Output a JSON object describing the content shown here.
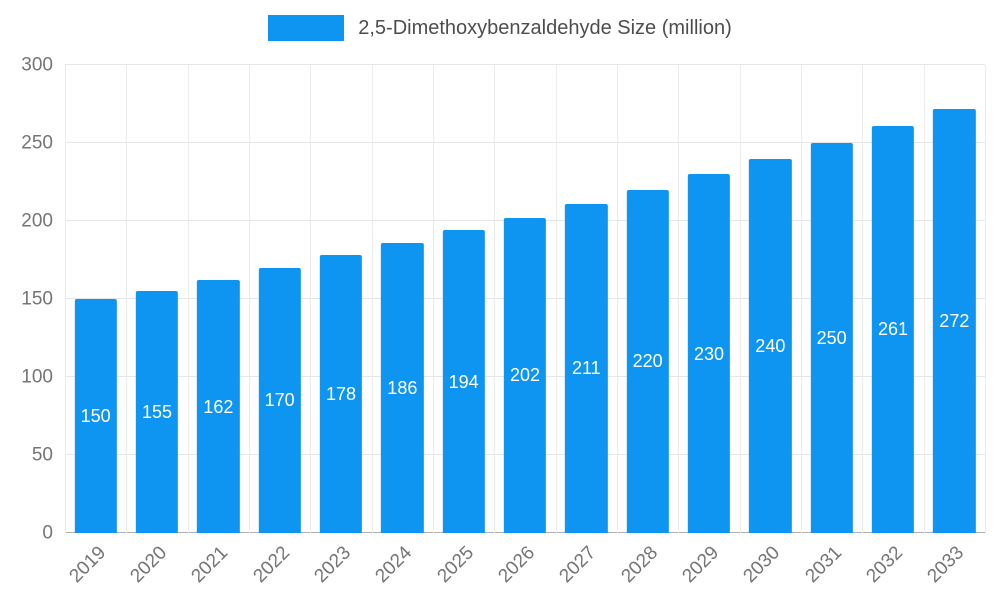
{
  "legend": {
    "label": "2,5-Dimethoxybenzaldehyde Size (million)"
  },
  "chart_data": {
    "type": "bar",
    "title": "2,5-Dimethoxybenzaldehyde Size (million)",
    "categories": [
      "2019",
      "2020",
      "2021",
      "2022",
      "2023",
      "2024",
      "2025",
      "2026",
      "2027",
      "2028",
      "2029",
      "2030",
      "2031",
      "2032",
      "2033"
    ],
    "values": [
      150,
      155,
      162,
      170,
      178,
      186,
      194,
      202,
      211,
      220,
      230,
      240,
      250,
      261,
      272
    ],
    "xlabel": "",
    "ylabel": "",
    "ylim": [
      0,
      300
    ],
    "ytick_step": 50,
    "yticks": [
      0,
      50,
      100,
      150,
      200,
      250,
      300
    ],
    "grid": true,
    "legend_position": "top",
    "bar_color": "#0e94f1",
    "value_label_color": "#ffffff",
    "tick_label_color": "#757575",
    "grid_color": "#e6e6e6"
  }
}
